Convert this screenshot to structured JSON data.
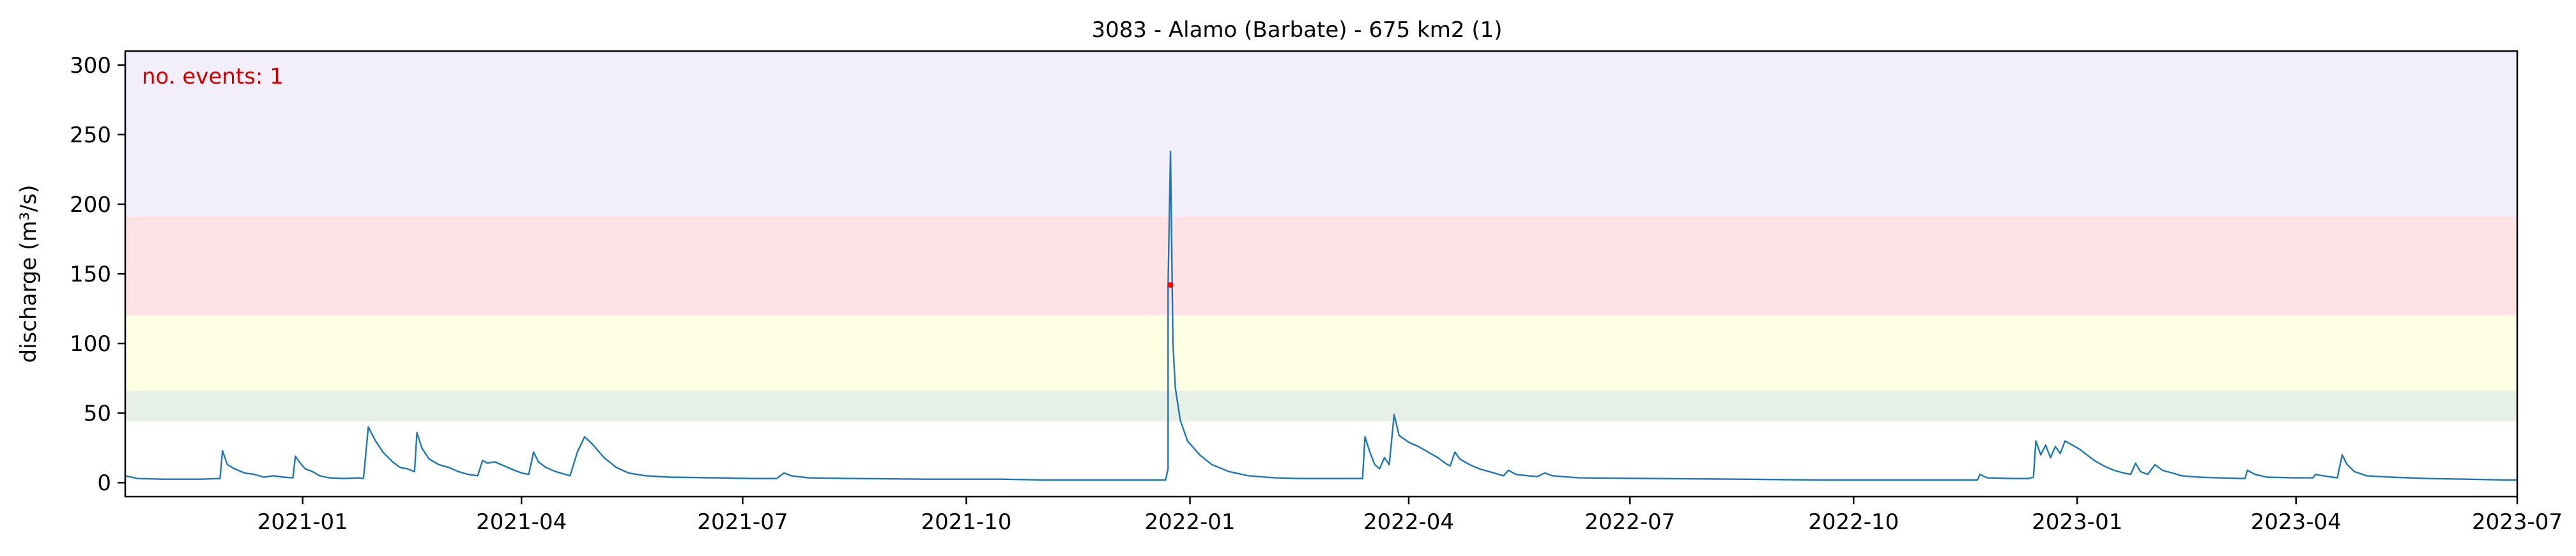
{
  "chart_data": {
    "type": "line",
    "title": "3083 - Alamo (Barbate) - 675 km2 (1)",
    "xlabel": "",
    "ylabel": "discharge (m³/s)",
    "xlim": [
      "2020-10-20",
      "2023-07-01"
    ],
    "ylim": [
      -10,
      310
    ],
    "xticks": [
      {
        "date": "2021-01-01",
        "label": "2021-01"
      },
      {
        "date": "2021-04-01",
        "label": "2021-04"
      },
      {
        "date": "2021-07-01",
        "label": "2021-07"
      },
      {
        "date": "2021-10-01",
        "label": "2021-10"
      },
      {
        "date": "2022-01-01",
        "label": "2022-01"
      },
      {
        "date": "2022-04-01",
        "label": "2022-04"
      },
      {
        "date": "2022-07-01",
        "label": "2022-07"
      },
      {
        "date": "2022-10-01",
        "label": "2022-10"
      },
      {
        "date": "2023-01-01",
        "label": "2023-01"
      },
      {
        "date": "2023-04-01",
        "label": "2023-04"
      },
      {
        "date": "2023-07-01",
        "label": "2023-07"
      }
    ],
    "yticks": [
      0,
      50,
      100,
      150,
      200,
      250,
      300
    ],
    "grid": false,
    "bands": [
      {
        "from": 44,
        "to": 66,
        "color": "#e6f0e6"
      },
      {
        "from": 66,
        "to": 120,
        "color": "#ffffe4"
      },
      {
        "from": 120,
        "to": 191,
        "color": "#ffe2e6"
      },
      {
        "from": 191,
        "to": 310,
        "color": "#f2effa"
      }
    ],
    "annotation": {
      "text": "no. events: 1",
      "color": "#d00000"
    },
    "events": [
      {
        "x": "2021-12-24",
        "y": 142,
        "color": "#ff0000"
      }
    ],
    "series": [
      {
        "color": "#1f77b4",
        "points": [
          [
            "2020-10-20",
            5
          ],
          [
            "2020-10-25",
            3
          ],
          [
            "2020-11-05",
            2.5
          ],
          [
            "2020-11-20",
            2.5
          ],
          [
            "2020-11-28",
            3
          ],
          [
            "2020-11-29",
            23
          ],
          [
            "2020-12-01",
            13
          ],
          [
            "2020-12-04",
            10
          ],
          [
            "2020-12-08",
            7
          ],
          [
            "2020-12-12",
            6
          ],
          [
            "2020-12-16",
            4
          ],
          [
            "2020-12-20",
            5
          ],
          [
            "2020-12-24",
            4
          ],
          [
            "2020-12-28",
            3.5
          ],
          [
            "2020-12-29",
            19
          ],
          [
            "2020-12-31",
            14
          ],
          [
            "2021-01-02",
            10
          ],
          [
            "2021-01-05",
            8
          ],
          [
            "2021-01-08",
            5
          ],
          [
            "2021-01-12",
            3.5
          ],
          [
            "2021-01-18",
            3
          ],
          [
            "2021-01-24",
            3.5
          ],
          [
            "2021-01-26",
            3
          ],
          [
            "2021-01-28",
            40
          ],
          [
            "2021-01-31",
            30
          ],
          [
            "2021-02-03",
            22
          ],
          [
            "2021-02-07",
            15
          ],
          [
            "2021-02-10",
            11
          ],
          [
            "2021-02-13",
            10
          ],
          [
            "2021-02-16",
            8
          ],
          [
            "2021-02-17",
            36
          ],
          [
            "2021-02-19",
            25
          ],
          [
            "2021-02-22",
            17
          ],
          [
            "2021-02-26",
            13
          ],
          [
            "2021-03-02",
            11
          ],
          [
            "2021-03-06",
            8
          ],
          [
            "2021-03-10",
            6
          ],
          [
            "2021-03-14",
            5
          ],
          [
            "2021-03-16",
            16
          ],
          [
            "2021-03-18",
            14
          ],
          [
            "2021-03-21",
            15
          ],
          [
            "2021-03-25",
            12
          ],
          [
            "2021-03-29",
            9
          ],
          [
            "2021-04-01",
            7
          ],
          [
            "2021-04-04",
            6
          ],
          [
            "2021-04-06",
            22
          ],
          [
            "2021-04-08",
            15
          ],
          [
            "2021-04-11",
            11
          ],
          [
            "2021-04-15",
            8
          ],
          [
            "2021-04-19",
            6
          ],
          [
            "2021-04-21",
            5
          ],
          [
            "2021-04-24",
            22
          ],
          [
            "2021-04-27",
            33
          ],
          [
            "2021-04-30",
            28
          ],
          [
            "2021-05-05",
            18
          ],
          [
            "2021-05-10",
            11
          ],
          [
            "2021-05-15",
            7
          ],
          [
            "2021-05-22",
            5
          ],
          [
            "2021-06-01",
            4
          ],
          [
            "2021-06-20",
            3.5
          ],
          [
            "2021-07-05",
            3
          ],
          [
            "2021-07-15",
            3
          ],
          [
            "2021-07-18",
            7
          ],
          [
            "2021-07-21",
            5
          ],
          [
            "2021-07-28",
            3.5
          ],
          [
            "2021-08-15",
            3
          ],
          [
            "2021-09-15",
            2.5
          ],
          [
            "2021-10-15",
            2.5
          ],
          [
            "2021-11-01",
            2
          ],
          [
            "2021-11-25",
            2
          ],
          [
            "2021-12-15",
            2
          ],
          [
            "2021-12-20",
            2
          ],
          [
            "2021-12-22",
            2
          ],
          [
            "2021-12-23",
            10
          ],
          [
            "2021-12-23",
            142
          ],
          [
            "2021-12-24",
            238
          ],
          [
            "2021-12-25",
            100
          ],
          [
            "2021-12-26",
            68
          ],
          [
            "2021-12-28",
            45
          ],
          [
            "2021-12-31",
            30
          ],
          [
            "2022-01-05",
            20
          ],
          [
            "2022-01-10",
            13
          ],
          [
            "2022-01-17",
            8
          ],
          [
            "2022-01-25",
            5
          ],
          [
            "2022-02-05",
            3.5
          ],
          [
            "2022-02-15",
            3
          ],
          [
            "2022-02-28",
            3
          ],
          [
            "2022-03-10",
            3
          ],
          [
            "2022-03-13",
            3
          ],
          [
            "2022-03-14",
            33
          ],
          [
            "2022-03-16",
            22
          ],
          [
            "2022-03-18",
            13
          ],
          [
            "2022-03-20",
            10
          ],
          [
            "2022-03-22",
            18
          ],
          [
            "2022-03-24",
            13
          ],
          [
            "2022-03-26",
            49
          ],
          [
            "2022-03-28",
            34
          ],
          [
            "2022-04-01",
            29
          ],
          [
            "2022-04-05",
            26
          ],
          [
            "2022-04-09",
            22
          ],
          [
            "2022-04-13",
            18
          ],
          [
            "2022-04-16",
            14
          ],
          [
            "2022-04-18",
            12
          ],
          [
            "2022-04-20",
            22
          ],
          [
            "2022-04-22",
            17
          ],
          [
            "2022-04-26",
            13
          ],
          [
            "2022-04-30",
            10
          ],
          [
            "2022-05-04",
            8
          ],
          [
            "2022-05-08",
            6
          ],
          [
            "2022-05-10",
            5
          ],
          [
            "2022-05-12",
            9
          ],
          [
            "2022-05-15",
            6
          ],
          [
            "2022-05-20",
            5
          ],
          [
            "2022-05-24",
            4.5
          ],
          [
            "2022-05-27",
            7
          ],
          [
            "2022-05-30",
            5
          ],
          [
            "2022-06-10",
            3.5
          ],
          [
            "2022-07-10",
            3
          ],
          [
            "2022-08-15",
            2.5
          ],
          [
            "2022-09-15",
            2
          ],
          [
            "2022-10-15",
            2
          ],
          [
            "2022-11-05",
            2
          ],
          [
            "2022-11-21",
            2
          ],
          [
            "2022-11-22",
            6
          ],
          [
            "2022-11-25",
            3.5
          ],
          [
            "2022-12-05",
            3
          ],
          [
            "2022-12-12",
            3
          ],
          [
            "2022-12-14",
            4
          ],
          [
            "2022-12-15",
            30
          ],
          [
            "2022-12-17",
            20
          ],
          [
            "2022-12-19",
            27
          ],
          [
            "2022-12-21",
            18
          ],
          [
            "2022-12-23",
            26
          ],
          [
            "2022-12-25",
            21
          ],
          [
            "2022-12-27",
            30
          ],
          [
            "2022-12-29",
            28
          ],
          [
            "2023-01-02",
            24
          ],
          [
            "2023-01-05",
            20
          ],
          [
            "2023-01-08",
            16
          ],
          [
            "2023-01-12",
            12
          ],
          [
            "2023-01-16",
            9
          ],
          [
            "2023-01-20",
            7
          ],
          [
            "2023-01-23",
            6
          ],
          [
            "2023-01-25",
            14
          ],
          [
            "2023-01-27",
            8
          ],
          [
            "2023-01-30",
            6
          ],
          [
            "2023-02-02",
            13
          ],
          [
            "2023-02-05",
            9
          ],
          [
            "2023-02-09",
            7
          ],
          [
            "2023-02-13",
            5
          ],
          [
            "2023-02-20",
            4
          ],
          [
            "2023-02-28",
            3.5
          ],
          [
            "2023-03-10",
            3
          ],
          [
            "2023-03-11",
            3
          ],
          [
            "2023-03-12",
            9
          ],
          [
            "2023-03-15",
            6
          ],
          [
            "2023-03-20",
            4
          ],
          [
            "2023-04-01",
            3.5
          ],
          [
            "2023-04-08",
            3.5
          ],
          [
            "2023-04-09",
            6
          ],
          [
            "2023-04-12",
            5
          ],
          [
            "2023-04-16",
            4
          ],
          [
            "2023-04-18",
            3.5
          ],
          [
            "2023-04-20",
            20
          ],
          [
            "2023-04-22",
            13
          ],
          [
            "2023-04-25",
            8
          ],
          [
            "2023-04-30",
            5
          ],
          [
            "2023-05-10",
            4
          ],
          [
            "2023-05-25",
            3
          ],
          [
            "2023-06-10",
            2.5
          ],
          [
            "2023-06-25",
            2
          ],
          [
            "2023-07-01",
            2
          ]
        ]
      }
    ]
  }
}
